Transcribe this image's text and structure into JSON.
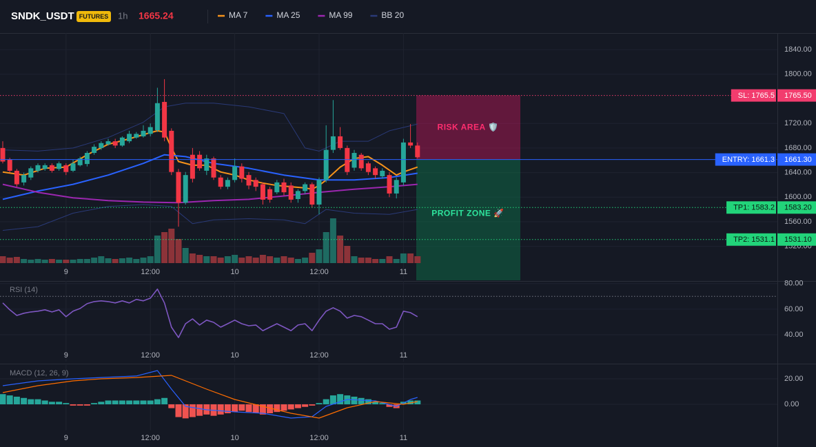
{
  "header": {
    "symbol": "SNDK_USDT",
    "badge": "FUTURES",
    "interval": "1h",
    "price": 1665.24
  },
  "chart_data": [
    {
      "type": "candlestick",
      "categories": [
        null,
        null,
        null,
        null,
        null,
        null,
        null,
        null,
        null,
        "9",
        null,
        null,
        null,
        null,
        null,
        null,
        null,
        null,
        null,
        null,
        null,
        "12:00",
        null,
        null,
        null,
        null,
        null,
        null,
        null,
        null,
        null,
        null,
        null,
        "10",
        null,
        null,
        null,
        null,
        null,
        null,
        null,
        null,
        null,
        null,
        null,
        "12:00",
        null,
        null,
        null,
        null,
        null,
        null,
        null,
        null,
        null,
        null,
        null,
        "11",
        null,
        null
      ],
      "open": [
        1680,
        1661,
        1643,
        1624,
        1632,
        1643,
        1646,
        1652,
        1646,
        1652,
        1643,
        1652,
        1654,
        1672,
        1680,
        1686,
        1691,
        1684,
        1691,
        1697,
        1699,
        1703,
        1709,
        1755,
        1708,
        1641,
        1591,
        1669,
        1669,
        1643,
        1663,
        1632,
        1617,
        1628,
        1650,
        1636,
        1628,
        1621,
        1613,
        1608,
        1624,
        1619,
        1597,
        1610,
        1621,
        1588,
        1628,
        1677,
        1699,
        1680,
        1648,
        1669,
        1655,
        1647,
        1634,
        1636,
        1606,
        1624,
        1689,
        1684
      ],
      "high": [
        1691,
        1664,
        1646,
        1640,
        1650,
        1655,
        1655,
        1655,
        1658,
        1655,
        1661,
        1666,
        1675,
        1686,
        1691,
        1695,
        1695,
        1699,
        1708,
        1706,
        1717,
        1720,
        1778,
        1792,
        1712,
        1646,
        1641,
        1680,
        1675,
        1669,
        1666,
        1636,
        1632,
        1663,
        1655,
        1641,
        1632,
        1624,
        1617,
        1628,
        1630,
        1624,
        1613,
        1624,
        1624,
        1632,
        1717,
        1758,
        1714,
        1684,
        1677,
        1672,
        1658,
        1650,
        1647,
        1641,
        1632,
        1695,
        1719,
        1689
      ],
      "low": [
        1655,
        1640,
        1617,
        1619,
        1628,
        1640,
        1643,
        1640,
        1643,
        1636,
        1641,
        1650,
        1650,
        1669,
        1677,
        1684,
        1680,
        1682,
        1688,
        1695,
        1697,
        1699,
        1706,
        1691,
        1636,
        1552,
        1588,
        1624,
        1643,
        1636,
        1628,
        1613,
        1613,
        1624,
        1624,
        1613,
        1610,
        1588,
        1591,
        1605,
        1603,
        1591,
        1591,
        1605,
        1583,
        1572,
        1624,
        1672,
        1677,
        1636,
        1643,
        1643,
        1636,
        1630,
        1630,
        1600,
        1598,
        1619,
        1680,
        1663
      ],
      "close": [
        1658,
        1643,
        1621,
        1636,
        1647,
        1652,
        1652,
        1643,
        1655,
        1641,
        1655,
        1663,
        1672,
        1682,
        1688,
        1691,
        1684,
        1697,
        1703,
        1703,
        1708,
        1714,
        1753,
        1697,
        1641,
        1591,
        1636,
        1630,
        1647,
        1663,
        1632,
        1617,
        1628,
        1650,
        1630,
        1619,
        1617,
        1596,
        1596,
        1624,
        1608,
        1596,
        1610,
        1621,
        1588,
        1628,
        1677,
        1699,
        1680,
        1641,
        1672,
        1647,
        1641,
        1636,
        1643,
        1606,
        1628,
        1689,
        1684,
        1665
      ],
      "up_color": "#26a69a",
      "down_color": "#f23645",
      "volume": [
        10,
        8,
        9,
        6,
        5,
        6,
        5,
        6,
        5,
        5,
        5,
        6,
        6,
        8,
        10,
        7,
        6,
        7,
        8,
        6,
        8,
        10,
        40,
        45,
        50,
        35,
        22,
        14,
        12,
        10,
        10,
        8,
        10,
        12,
        8,
        10,
        8,
        12,
        10,
        8,
        10,
        8,
        6,
        8,
        15,
        20,
        45,
        65,
        40,
        25,
        10,
        8,
        8,
        6,
        6,
        10,
        6,
        14,
        14,
        10
      ],
      "volume_ylim": [
        0,
        100
      ],
      "volume_up_color": "#1e6b62",
      "volume_down_color": "#8c3339",
      "ylim": [
        1467,
        1867
      ],
      "yticks": [
        {
          "value": 1840,
          "label": "1840.00"
        },
        {
          "value": 1800,
          "label": "1800.00"
        },
        {
          "value": 1720,
          "label": "1720.00"
        },
        {
          "value": 1680,
          "label": "1680.00"
        },
        {
          "value": 1640,
          "label": "1640.00"
        },
        {
          "value": 1600,
          "label": "1600.00"
        },
        {
          "value": 1560,
          "label": "1560.00"
        },
        {
          "value": 1520,
          "label": "1520.00"
        }
      ],
      "grid": true,
      "overlays": [
        {
          "name": "MA 7",
          "color": "#f7931a",
          "x": [
            0,
            3,
            6,
            9,
            12,
            15,
            18,
            21,
            22,
            23,
            24,
            25,
            27,
            29,
            31,
            33,
            35,
            37,
            39,
            41,
            43,
            44,
            45,
            46,
            48,
            50,
            52,
            54,
            56,
            57,
            59
          ],
          "values": [
            1641,
            1636,
            1647,
            1649,
            1669,
            1686,
            1695,
            1705,
            1708,
            1706,
            1680,
            1658,
            1652,
            1652,
            1641,
            1636,
            1628,
            1623,
            1619,
            1617,
            1615,
            1613,
            1619,
            1628,
            1649,
            1663,
            1666,
            1652,
            1636,
            1641,
            1649
          ]
        },
        {
          "name": "MA 25",
          "color": "#2962ff",
          "x": [
            0,
            5,
            10,
            15,
            20,
            23,
            26,
            30,
            35,
            40,
            45,
            50,
            55,
            59
          ],
          "values": [
            1596.5,
            1610,
            1621,
            1636,
            1655,
            1669,
            1666,
            1655,
            1647,
            1636,
            1628,
            1628,
            1632,
            1639
          ]
        },
        {
          "name": "MA 99",
          "color": "#9c27b0",
          "x": [
            0,
            5,
            10,
            15,
            20,
            25,
            30,
            35,
            40,
            45,
            50,
            55,
            59
          ],
          "values": [
            1621,
            1608,
            1599,
            1594.5,
            1592,
            1591,
            1594.5,
            1596.5,
            1602,
            1608,
            1613,
            1617,
            1621
          ]
        },
        {
          "name": "BB 20",
          "color": "#2a3a78",
          "x_upper": [
            0,
            5,
            10,
            15,
            20,
            23,
            26,
            30,
            35,
            40,
            43,
            45,
            48,
            52,
            55,
            59
          ],
          "upper": [
            1677,
            1675,
            1680,
            1697,
            1722,
            1747,
            1753,
            1753,
            1747,
            1736,
            1680,
            1675,
            1691,
            1691,
            1708,
            1719
          ],
          "x_lower": [
            0,
            5,
            10,
            15,
            20,
            24,
            27,
            30,
            35,
            40,
            43,
            46,
            50,
            55,
            59
          ],
          "lower": [
            1546,
            1552,
            1574,
            1585,
            1588,
            1585,
            1557,
            1563,
            1565,
            1563,
            1557,
            1580,
            1574,
            1572,
            1580
          ]
        }
      ],
      "levels": [
        {
          "label": "SL: 1765.5",
          "value": 1765.5,
          "axis_label": "1765.50",
          "color": "#f23c6e",
          "text_color": "#ffffff",
          "style": "dotted"
        },
        {
          "label": "ENTRY: 1661.3",
          "value": 1661.3,
          "axis_label": "1661.30",
          "color": "#2962ff",
          "text_color": "#ffffff",
          "style": "solid"
        },
        {
          "label": "TP1: 1583.2",
          "value": 1583.2,
          "axis_label": "1583.20",
          "color": "#22d47a",
          "text_color": "#0b1a12",
          "style": "dotted"
        },
        {
          "label": "TP2: 1531.1",
          "value": 1531.1,
          "axis_label": "1531.10",
          "color": "#22d47a",
          "text_color": "#0b1a12",
          "style": "dotted"
        }
      ],
      "zones": [
        {
          "label": "RISK AREA 🛡️",
          "color": "#c2185b",
          "text_color": "#ff2d6f"
        },
        {
          "label": "PROFIT ZONE 🚀",
          "color": "#0e6e48",
          "text_color": "#2ee59d"
        }
      ]
    },
    {
      "type": "line",
      "title": "RSI (14)",
      "values": [
        64.9,
        59.5,
        55.1,
        56.8,
        57.8,
        58.4,
        59.5,
        57.8,
        59.5,
        54.1,
        58.4,
        60.5,
        64.3,
        65.9,
        66.5,
        65.9,
        64.9,
        66.5,
        64.9,
        67.6,
        66.5,
        68.6,
        75.7,
        64.9,
        45.9,
        37.8,
        48.6,
        52.4,
        47.6,
        51.4,
        49.7,
        45.9,
        48.6,
        51.4,
        48.6,
        47,
        47.6,
        43.2,
        45.9,
        48.6,
        45.9,
        43.2,
        47.6,
        48.6,
        43.2,
        51.4,
        58.4,
        61.1,
        58.4,
        53,
        55.1,
        54.1,
        51.4,
        48.6,
        48.6,
        44.3,
        45.9,
        58.4,
        57.3,
        54.1
      ],
      "color": "#7e57c2",
      "ylim": [
        19,
        82
      ],
      "yticks": [
        {
          "value": 80,
          "label": "80.00"
        },
        {
          "value": 60,
          "label": "60.00"
        },
        {
          "value": 40,
          "label": "40.00"
        }
      ],
      "level": 70,
      "grid": true
    },
    {
      "type": "macd",
      "title": "MACD (12, 26, 9)",
      "histogram": [
        8,
        7,
        6,
        5,
        4,
        4,
        3,
        2,
        2,
        1,
        -1,
        -1,
        -1,
        1,
        2,
        3,
        3,
        3,
        3,
        3,
        3,
        3,
        4,
        5,
        -3,
        -10,
        -11,
        -10,
        -9,
        -8,
        -9,
        -8,
        -7,
        -6,
        -5,
        -6,
        -7,
        -8,
        -7,
        -6,
        -5,
        -4,
        -3,
        -2,
        -1,
        1,
        4,
        7,
        8,
        7,
        6,
        5,
        4,
        2,
        1,
        -2,
        -3,
        2,
        3,
        3
      ],
      "up_color": "#26a69a",
      "down_color": "#ef5350",
      "macd": {
        "color": "#2962ff",
        "x": [
          0,
          5,
          10,
          14,
          19,
          22,
          24,
          26,
          29,
          33,
          37,
          41,
          44,
          46,
          49,
          53,
          56,
          58,
          59
        ],
        "values": [
          14.6,
          18.4,
          20,
          21,
          22.2,
          26.5,
          11.9,
          -1.6,
          -4.3,
          -5.9,
          -7,
          -10.8,
          -9.7,
          -1.6,
          3.8,
          2.7,
          -1.6,
          3.8,
          5.4
        ]
      },
      "signal": {
        "color": "#ff6d00",
        "x": [
          0,
          5,
          10,
          14,
          19,
          24,
          29,
          33,
          37,
          41,
          45,
          49,
          53,
          57,
          59
        ],
        "values": [
          9.2,
          14.6,
          18.4,
          20,
          21,
          22.7,
          11.9,
          3.8,
          -1.6,
          -7,
          -10.8,
          -2.7,
          2.2,
          0,
          2.2
        ]
      },
      "ylim": [
        -20.5,
        30.8
      ],
      "yticks": [
        {
          "value": 20,
          "label": "20.00"
        },
        {
          "value": 0,
          "label": "0.00"
        }
      ],
      "grid": true
    }
  ]
}
